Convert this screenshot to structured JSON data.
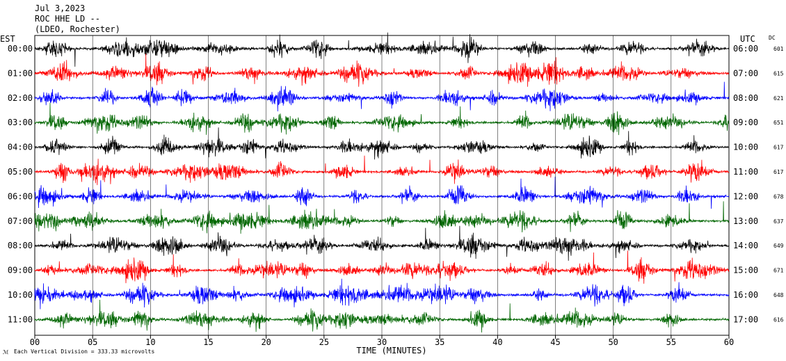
{
  "header": {
    "date": "Jul 3,2023",
    "station": "ROC HHE LD --",
    "location": "(LDEO, Rochester)"
  },
  "chart_data": {
    "type": "line",
    "title": "Jul 3,2023",
    "xlabel": "TIME (MINUTES)",
    "left_axis_label": "EST",
    "right_axis_label": "UTC",
    "dc_label": "DC",
    "xlim": [
      0,
      60
    ],
    "x_ticks": [
      "00",
      "05",
      "10",
      "15",
      "20",
      "25",
      "30",
      "35",
      "40",
      "45",
      "50",
      "55",
      "60"
    ],
    "trace_colors": [
      "#000000",
      "#ff0000",
      "#0000ff",
      "#006600"
    ],
    "rows": [
      {
        "est": "00:00",
        "utc": "06:00",
        "dc": "601"
      },
      {
        "est": "01:00",
        "utc": "07:00",
        "dc": "615"
      },
      {
        "est": "02:00",
        "utc": "08:00",
        "dc": "621"
      },
      {
        "est": "03:00",
        "utc": "09:00",
        "dc": "651"
      },
      {
        "est": "04:00",
        "utc": "10:00",
        "dc": "617"
      },
      {
        "est": "05:00",
        "utc": "11:00",
        "dc": "617"
      },
      {
        "est": "06:00",
        "utc": "12:00",
        "dc": "678"
      },
      {
        "est": "07:00",
        "utc": "13:00",
        "dc": "637"
      },
      {
        "est": "08:00",
        "utc": "14:00",
        "dc": "649"
      },
      {
        "est": "09:00",
        "utc": "15:00",
        "dc": "671"
      },
      {
        "est": "10:00",
        "utc": "16:00",
        "dc": "648"
      },
      {
        "est": "11:00",
        "utc": "17:00",
        "dc": "616"
      }
    ],
    "scale_note": "Each Vertical Division = 333.33 microvolts"
  }
}
